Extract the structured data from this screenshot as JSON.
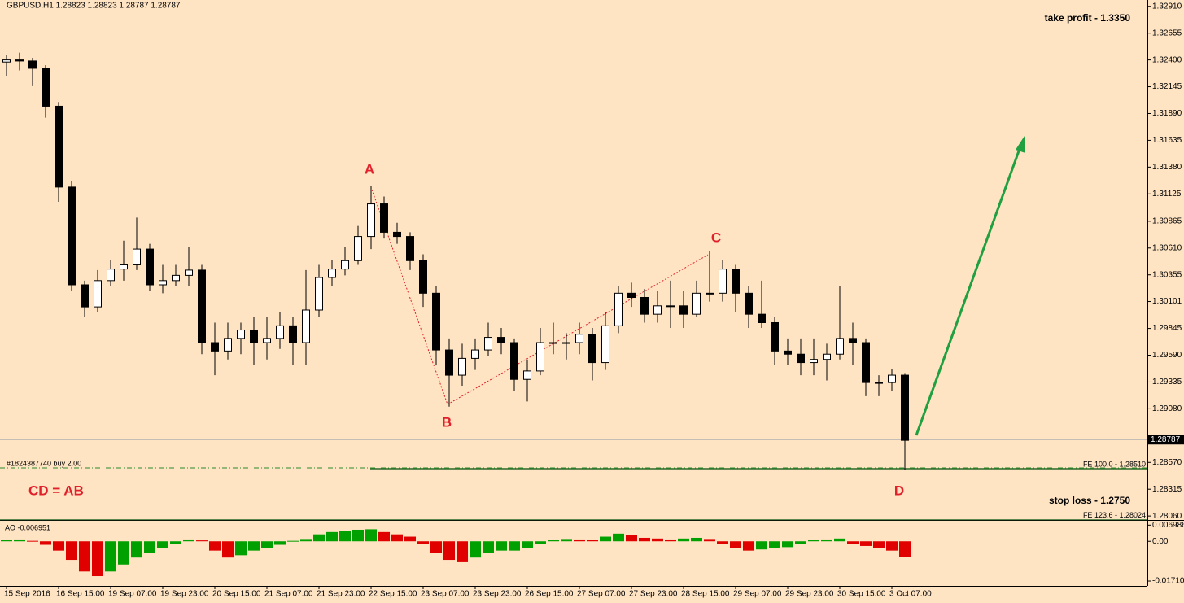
{
  "chart_data": [
    {
      "type": "candlestick",
      "title": "GBPUSD,H1  1.28823 1.28823 1.28787 1.28787",
      "categories": [
        "15 Sep 2016",
        null,
        null,
        null,
        "16 Sep 15:00",
        null,
        null,
        null,
        "19 Sep 07:00",
        null,
        null,
        null,
        "19 Sep 23:00",
        null,
        null,
        null,
        "20 Sep 15:00",
        null,
        null,
        null,
        "21 Sep 07:00",
        null,
        null,
        null,
        "21 Sep 23:00",
        null,
        null,
        null,
        "22 Sep 15:00",
        null,
        null,
        null,
        "23 Sep 07:00",
        null,
        null,
        null,
        "23 Sep 23:00",
        null,
        null,
        null,
        "26 Sep 15:00",
        null,
        null,
        null,
        "27 Sep 07:00",
        null,
        null,
        null,
        "27 Sep 23:00",
        null,
        null,
        null,
        "28 Sep 15:00",
        null,
        null,
        null,
        "29 Sep 07:00",
        null,
        null,
        null,
        "29 Sep 23:00",
        null,
        null,
        null,
        "30 Sep 15:00",
        null,
        null,
        null,
        "3 Oct 07:00",
        null
      ],
      "open": [
        1.3238,
        1.324,
        1.3239,
        1.3232,
        1.3196,
        1.3119,
        1.3026,
        1.3005,
        1.303,
        1.3041,
        1.3045,
        1.306,
        1.3026,
        1.303,
        1.3035,
        1.304,
        1.2971,
        1.2963,
        1.2975,
        1.2983,
        1.2971,
        1.2975,
        1.2987,
        1.2971,
        1.3002,
        1.3033,
        1.3041,
        1.3049,
        1.3072,
        1.3103,
        1.3076,
        1.3072,
        1.3049,
        1.3018,
        1.2964,
        1.294,
        1.2956,
        1.2964,
        1.2976,
        1.2971,
        1.2936,
        1.2944,
        1.2971,
        1.2971,
        1.2971,
        1.2979,
        1.2952,
        1.2987,
        1.3018,
        1.3014,
        1.2998,
        1.3006,
        1.3006,
        1.2998,
        1.3018,
        1.3018,
        1.3041,
        1.3018,
        1.2998,
        1.299,
        1.2963,
        1.296,
        1.2952,
        1.2955,
        1.296,
        1.2975,
        1.2971,
        1.2933,
        1.2933,
        1.294
      ],
      "high": [
        1.3245,
        1.3247,
        1.3242,
        1.3235,
        1.32,
        1.3125,
        1.303,
        1.304,
        1.305,
        1.3068,
        1.309,
        1.3065,
        1.3045,
        1.3045,
        1.3062,
        1.3045,
        1.299,
        1.299,
        1.299,
        1.2995,
        1.2995,
        1.3,
        1.2995,
        1.304,
        1.3045,
        1.305,
        1.3062,
        1.3082,
        1.312,
        1.311,
        1.3085,
        1.3076,
        1.3055,
        1.3025,
        1.2975,
        1.297,
        1.2975,
        1.299,
        1.2985,
        1.2975,
        1.2955,
        1.2985,
        1.299,
        1.298,
        1.299,
        1.2985,
        1.3,
        1.3025,
        1.3028,
        1.3022,
        1.302,
        1.303,
        1.302,
        1.303,
        1.3058,
        1.305,
        1.3045,
        1.3025,
        1.303,
        1.2995,
        1.2975,
        1.2975,
        1.2975,
        1.297,
        1.3025,
        1.299,
        1.2975,
        1.294,
        1.2946,
        1.2942
      ],
      "low": [
        1.3225,
        1.323,
        1.3215,
        1.3185,
        1.3105,
        1.302,
        1.2995,
        1.3,
        1.3025,
        1.303,
        1.304,
        1.302,
        1.3018,
        1.3025,
        1.3025,
        1.296,
        1.294,
        1.2955,
        1.296,
        1.295,
        1.2955,
        1.2965,
        1.295,
        1.295,
        1.2995,
        1.3025,
        1.3035,
        1.3045,
        1.306,
        1.307,
        1.3065,
        1.304,
        1.3005,
        1.295,
        1.291,
        1.293,
        1.2945,
        1.2958,
        1.296,
        1.2925,
        1.2915,
        1.294,
        1.296,
        1.2955,
        1.296,
        1.2935,
        1.2945,
        1.298,
        1.3005,
        1.299,
        1.299,
        1.2985,
        1.2985,
        1.2995,
        1.301,
        1.301,
        1.3,
        1.2985,
        1.2985,
        1.295,
        1.295,
        1.294,
        1.294,
        1.2935,
        1.2955,
        1.295,
        1.292,
        1.292,
        1.2925,
        1.285
      ],
      "close": [
        1.324,
        1.3239,
        1.3232,
        1.3196,
        1.3119,
        1.3026,
        1.3005,
        1.303,
        1.3041,
        1.3045,
        1.306,
        1.3026,
        1.303,
        1.3035,
        1.304,
        1.2971,
        1.2963,
        1.2975,
        1.2983,
        1.2971,
        1.2975,
        1.2987,
        1.2971,
        1.3002,
        1.3033,
        1.3041,
        1.3049,
        1.3072,
        1.3103,
        1.3076,
        1.3072,
        1.3049,
        1.3018,
        1.2964,
        1.294,
        1.2956,
        1.2964,
        1.2976,
        1.2971,
        1.2936,
        1.2944,
        1.2971,
        1.2971,
        1.2971,
        1.2979,
        1.2952,
        1.2987,
        1.3018,
        1.3014,
        1.2998,
        1.3006,
        1.3006,
        1.2998,
        1.3018,
        1.3018,
        1.3041,
        1.3018,
        1.2998,
        1.299,
        1.2963,
        1.296,
        1.2952,
        1.2955,
        1.296,
        1.2975,
        1.2971,
        1.2933,
        1.2933,
        1.294,
        1.2878
      ],
      "up_color": "#ffffff",
      "down_color": "#000000",
      "line_color": "#000000",
      "ylim": [
        1.2803,
        1.3297
      ],
      "yticks": [
        {
          "value": 1.3291,
          "label": "1.32910"
        },
        {
          "value": 1.32655,
          "label": "1.32655"
        },
        {
          "value": 1.324,
          "label": "1.32400"
        },
        {
          "value": 1.32145,
          "label": "1.32145"
        },
        {
          "value": 1.3189,
          "label": "1.31890"
        },
        {
          "value": 1.31635,
          "label": "1.31635"
        },
        {
          "value": 1.3138,
          "label": "1.31380"
        },
        {
          "value": 1.31125,
          "label": "1.31125"
        },
        {
          "value": 1.30865,
          "label": "1.30865"
        },
        {
          "value": 1.3061,
          "label": "1.30610"
        },
        {
          "value": 1.30355,
          "label": "1.30355"
        },
        {
          "value": 1.30101,
          "label": "1.30101"
        },
        {
          "value": 1.29845,
          "label": "1.29845"
        },
        {
          "value": 1.2959,
          "label": "1.29590"
        },
        {
          "value": 1.29335,
          "label": "1.29335"
        },
        {
          "value": 1.2908,
          "label": "1.29080"
        },
        {
          "value": 1.2857,
          "label": "1.28570"
        },
        {
          "value": 1.28315,
          "label": "1.28315"
        },
        {
          "value": 1.2806,
          "label": "1.28060"
        }
      ],
      "last_price": 1.28787,
      "levels": [
        {
          "label": "FE 100.0 - 1.28510",
          "value": 1.2851
        },
        {
          "label": "FE 123.6 - 1.28024",
          "value": 1.28024
        }
      ],
      "order_label": "#1824387740 buy 2.00",
      "annotations": [
        "A",
        "B",
        "C",
        "D",
        "CD = AB",
        "take profit - 1.3350",
        "stop loss - 1.2750"
      ]
    },
    {
      "type": "bar",
      "title": "AO -0.006951",
      "values": [
        0.0005,
        0.0008,
        0.0002,
        -0.0015,
        -0.004,
        -0.008,
        -0.013,
        -0.015,
        -0.013,
        -0.01,
        -0.007,
        -0.005,
        -0.003,
        -0.001,
        0.0008,
        0.0004,
        -0.004,
        -0.007,
        -0.006,
        -0.004,
        -0.003,
        -0.0015,
        0.0002,
        0.001,
        0.003,
        0.004,
        0.0045,
        0.005,
        0.0052,
        0.004,
        0.003,
        0.002,
        -0.001,
        -0.005,
        -0.008,
        -0.009,
        -0.007,
        -0.005,
        -0.004,
        -0.004,
        -0.003,
        -0.001,
        0.0005,
        0.001,
        0.0008,
        0.0005,
        0.002,
        0.0033,
        0.0028,
        0.0015,
        0.0012,
        0.0008,
        0.0012,
        0.0015,
        0.001,
        -0.001,
        -0.003,
        -0.004,
        -0.0035,
        -0.003,
        -0.0025,
        -0.001,
        0.0005,
        0.0008,
        0.0012,
        -0.001,
        -0.002,
        -0.003,
        -0.004,
        -0.0069
      ],
      "up_color": "#00a000",
      "down_color": "#e00000",
      "ylim": [
        -0.0185,
        0.0085
      ],
      "yticks": [
        0.006986,
        {
          "value": 0,
          "label": "0.00"
        },
        -0.017105
      ]
    }
  ]
}
